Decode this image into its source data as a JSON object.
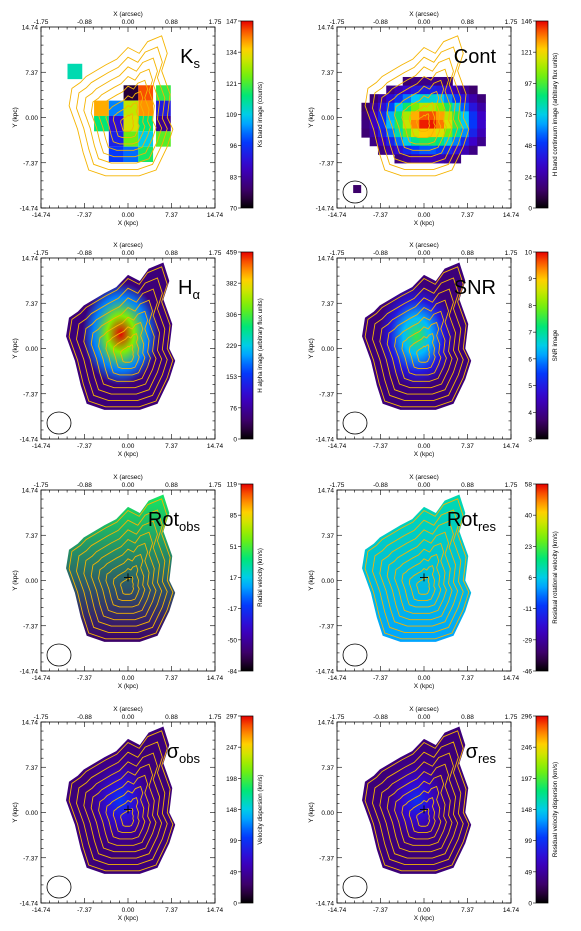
{
  "axes": {
    "x_top_title": "X (arcsec)",
    "x_bottom_title": "X (kpc)",
    "y_title": "Y (kpc)",
    "x_top_ticks": [
      "-1.75",
      "-0.88",
      "0.00",
      "0.88",
      "1.75"
    ],
    "x_bottom_ticks": [
      "-14.74",
      "-7.37",
      "0.00",
      "7.37",
      "14.74"
    ],
    "y_ticks": [
      "14.74",
      "7.37",
      "0.00",
      "-7.37",
      "-14.74"
    ]
  },
  "panels": [
    {
      "id": "ks",
      "label_main": "K",
      "label_sub": "s",
      "colorbar_title": "Ks band image (counts)",
      "colorbar_ticks": [
        "147",
        "134",
        "121",
        "109",
        "96",
        "83",
        "70"
      ],
      "beam": false,
      "center_cross": false,
      "map": {
        "x": [
          -9,
          -6,
          -3,
          0,
          3,
          6,
          9
        ],
        "y": [
          10,
          7,
          4,
          1,
          -2,
          -5,
          -8
        ],
        "cells": [
          [
            -9,
            7.5,
            0.55
          ],
          [
            0.5,
            4,
            0.05
          ],
          [
            3,
            4,
            0.95
          ],
          [
            6,
            4,
            0.65
          ],
          [
            -4.5,
            1.5,
            0.88
          ],
          [
            -2,
            1.5,
            0.42
          ],
          [
            0.5,
            1.5,
            0.78
          ],
          [
            3,
            1.5,
            0.9
          ],
          [
            6,
            1.5,
            0.28
          ],
          [
            -4.5,
            -1,
            0.6
          ],
          [
            -2,
            -1,
            0.25
          ],
          [
            0.5,
            -1,
            0.8
          ],
          [
            3,
            -1,
            0.6
          ],
          [
            6,
            -1,
            0.15
          ],
          [
            -2,
            -3.5,
            0.3
          ],
          [
            0.5,
            -3.5,
            0.7
          ],
          [
            3,
            -3.5,
            0.5
          ],
          [
            6,
            -3.5,
            0.68
          ],
          [
            -2,
            -6,
            0.35
          ],
          [
            0.5,
            -6,
            0.4
          ],
          [
            3,
            -6,
            0.62
          ]
        ]
      }
    },
    {
      "id": "cont",
      "label_main": "Cont",
      "label_sub": "",
      "colorbar_title": "H band continuum image (arbitrary flux units)",
      "colorbar_ticks": [
        "146",
        "121",
        "97",
        "73",
        "48",
        "24",
        "0"
      ],
      "beam": true,
      "center_cross": false,
      "blob": {
        "cx": 0,
        "cy": 0,
        "sx": 5.5,
        "sy": 3.5,
        "peak": 1.0
      }
    },
    {
      "id": "halpha",
      "label_main": "H",
      "label_sub": "α",
      "colorbar_title": "H alpha image (arbitrary flux units)",
      "colorbar_ticks": [
        "459",
        "382",
        "306",
        "229",
        "153",
        "76",
        "0"
      ],
      "beam": true,
      "center_cross": false,
      "blob": {
        "cx": 0,
        "cy": 0.5,
        "sx": 4.5,
        "sy": 3.5,
        "peak": 1.0
      }
    },
    {
      "id": "snr",
      "label_main": "SNR",
      "label_sub": "",
      "colorbar_title": "SNR image",
      "colorbar_ticks": [
        "10",
        "9",
        "8",
        "7",
        "6",
        "5",
        "4",
        "3"
      ],
      "beam": true,
      "center_cross": false,
      "blob": {
        "cx": 0,
        "cy": 0,
        "sx": 4,
        "sy": 4,
        "peak": 0.65
      }
    },
    {
      "id": "rot_obs",
      "label_main": "Rot",
      "label_sub": "obs",
      "colorbar_title": "Radial velocity (km/s)",
      "colorbar_ticks": [
        "119",
        "85",
        "51",
        "17",
        "-17",
        "-50",
        "-84"
      ],
      "beam": true,
      "center_cross": true,
      "gradient": {
        "top": 0.62,
        "bottom": 0.1
      }
    },
    {
      "id": "rot_res",
      "label_main": "Rot",
      "label_sub": "res",
      "colorbar_title": "Residual rotational velocity (km/s)",
      "colorbar_ticks": [
        "58",
        "40",
        "23",
        "6",
        "-11",
        "-29",
        "-46"
      ],
      "beam": true,
      "center_cross": true,
      "gradient": {
        "top": 0.55,
        "bottom": 0.45
      }
    },
    {
      "id": "sigma_obs",
      "label_main": "σ",
      "label_sub": "obs",
      "colorbar_title": "Velocity dispersion (km/s)",
      "colorbar_ticks": [
        "297",
        "247",
        "198",
        "148",
        "99",
        "49",
        "0"
      ],
      "beam": true,
      "center_cross": true,
      "blob": {
        "cx": 0,
        "cy": 0,
        "sx": 3,
        "sy": 2.5,
        "peak": 0.35
      }
    },
    {
      "id": "sigma_res",
      "label_main": "σ",
      "label_sub": "res",
      "colorbar_title": "Residual velocity dispersion (km/s)",
      "colorbar_ticks": [
        "296",
        "246",
        "197",
        "148",
        "99",
        "49",
        "0"
      ],
      "beam": true,
      "center_cross": true,
      "blob": {
        "cx": 0,
        "cy": 0,
        "sx": 3,
        "sy": 2.5,
        "peak": 0.33
      }
    }
  ],
  "colors": {
    "contour": "#f5b400",
    "contour_dark": "#c97a00",
    "frame": "#000000"
  }
}
